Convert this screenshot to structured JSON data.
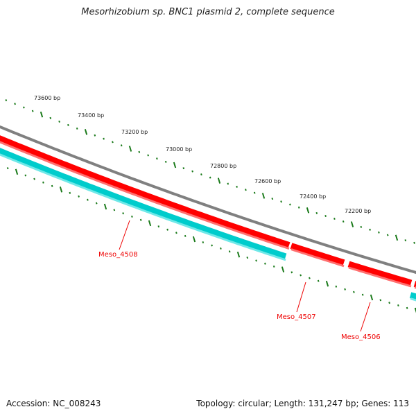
{
  "title": "Mesorhizobium sp. BNC1 plasmid 2, complete sequence",
  "accession": "Accession: NC_008243",
  "summary": "Topology: circular; Length: 131,247 bp; Genes: 113",
  "tick_labels": [
    "73600 bp",
    "73400 bp",
    "73200 bp",
    "73000 bp",
    "72800 bp",
    "72600 bp",
    "72400 bp",
    "72200 bp"
  ],
  "genes": [
    {
      "name": "Meso_4508"
    },
    {
      "name": "Meso_4507"
    },
    {
      "name": "Meso_4506"
    }
  ],
  "colors": {
    "backbone": "#808080",
    "forward": "#ff0000",
    "reverse": "#00cccc",
    "ticks": "#1a7a1a",
    "label": "#e00000"
  }
}
